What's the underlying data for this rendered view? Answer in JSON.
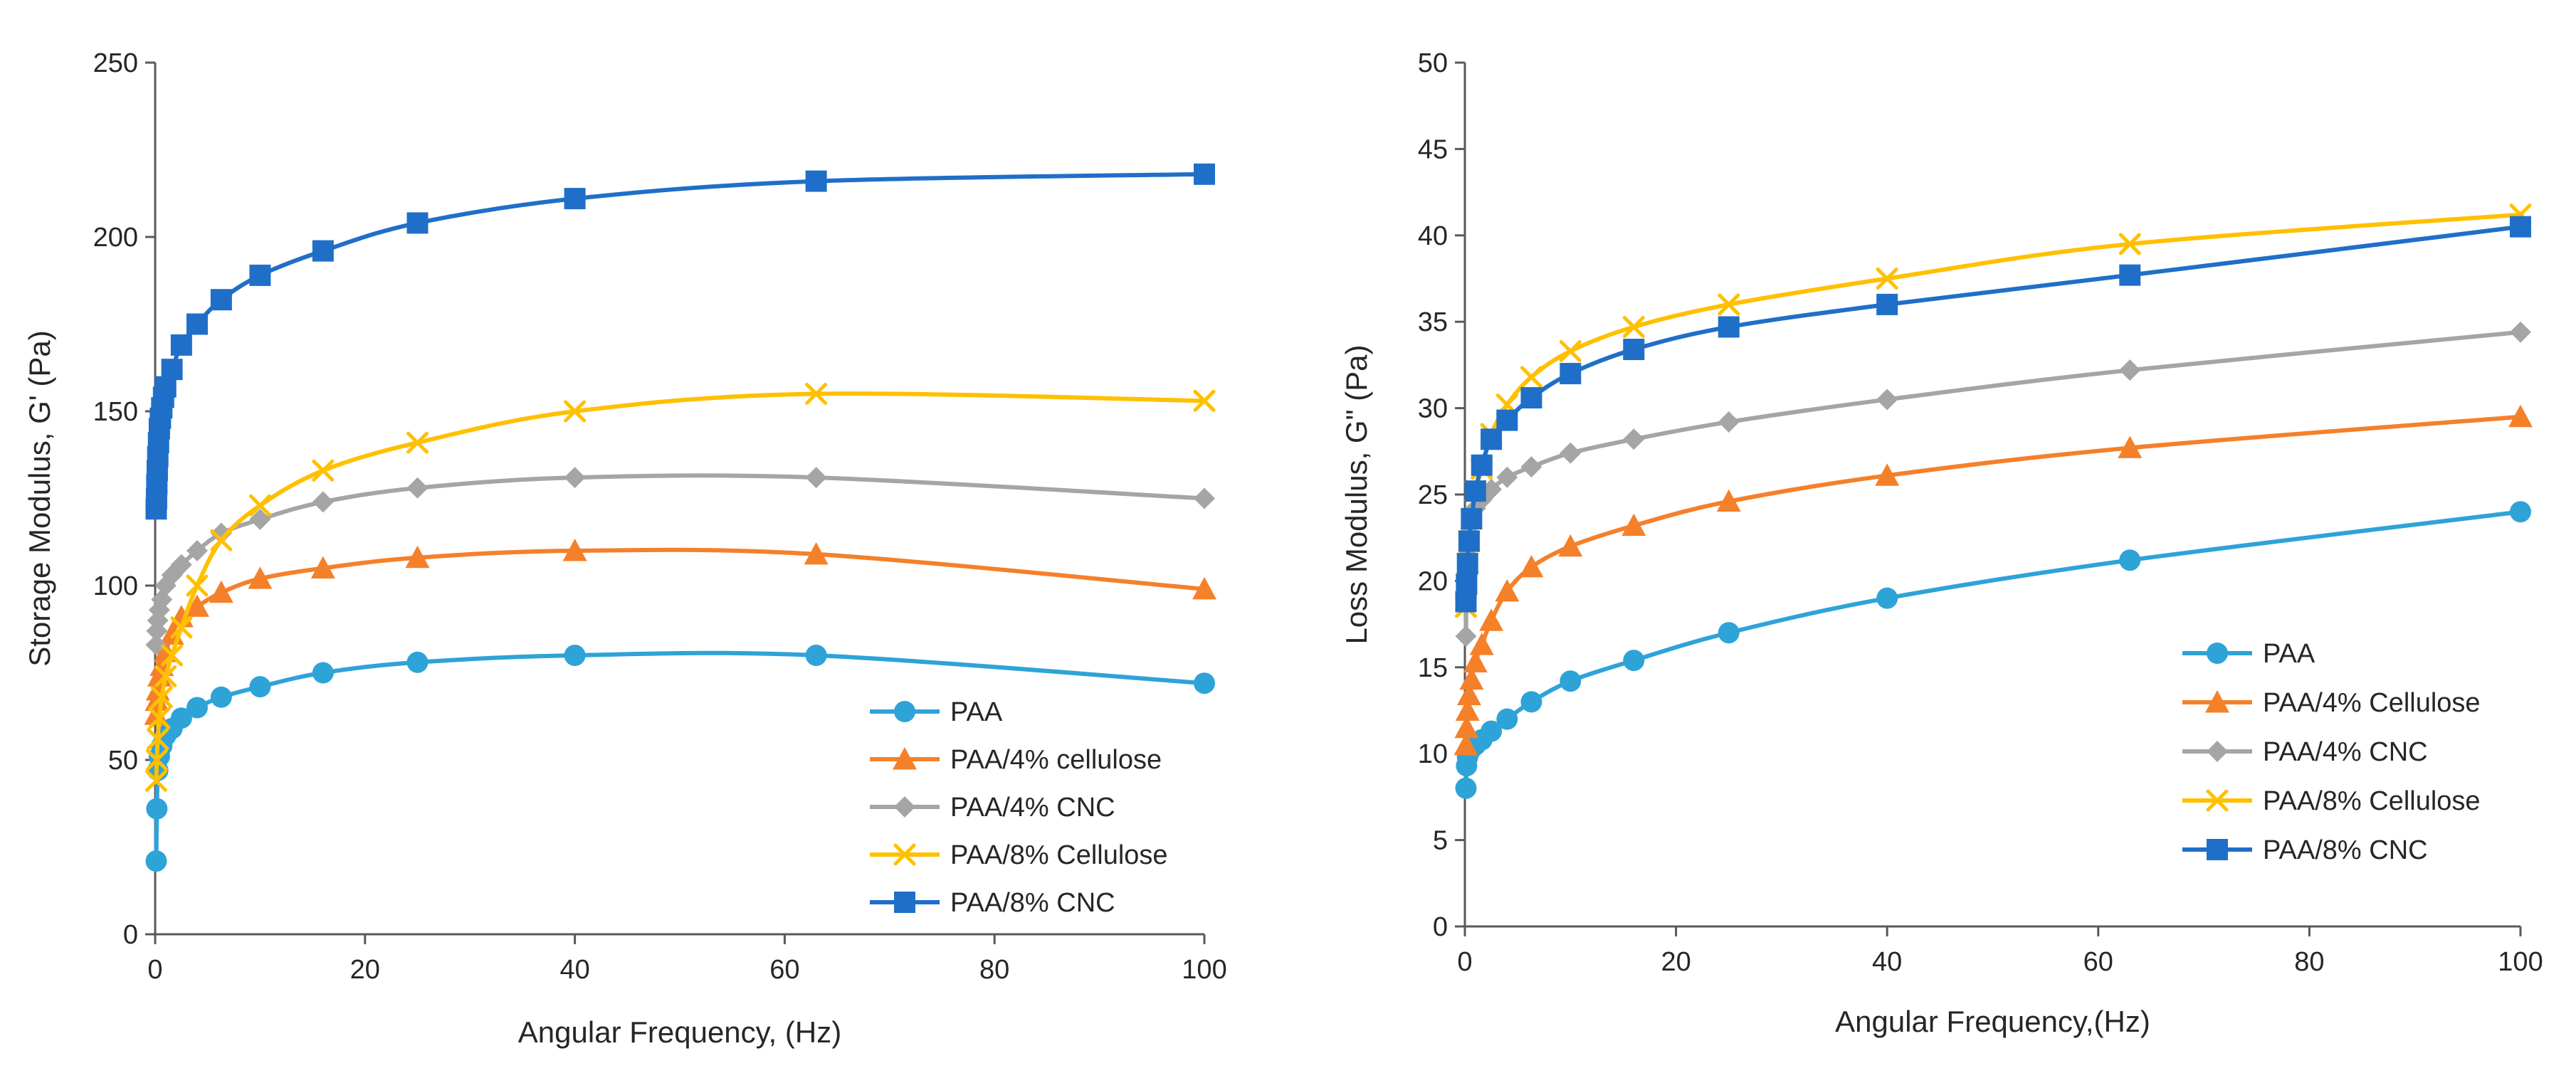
{
  "chart_data": [
    {
      "type": "line",
      "title": "",
      "xlabel": "Angular  Frequency, (Hz)",
      "ylabel": "Storage Modulus, G' (Pa)",
      "xlim": [
        0,
        100
      ],
      "ylim": [
        0,
        250
      ],
      "xticks": [
        "0",
        "20",
        "40",
        "60",
        "80",
        "100"
      ],
      "yticks": [
        "0",
        "50",
        "100",
        "150",
        "200",
        "250"
      ],
      "legend_position": "bottom-right",
      "series": [
        {
          "name": "PAA",
          "color": "#2ea3d8",
          "marker": "circle",
          "x": [
            0.1,
            0.16,
            0.25,
            0.4,
            0.63,
            1,
            1.6,
            2.5,
            4,
            6.3,
            10,
            16,
            25,
            40,
            63,
            100
          ],
          "y": [
            21,
            36,
            47,
            51,
            54,
            57,
            59,
            62,
            65,
            68,
            71,
            75,
            78,
            80,
            80,
            72
          ]
        },
        {
          "name": "PAA/4% cellulose",
          "color": "#f5802a",
          "marker": "triangle",
          "x": [
            0.1,
            0.16,
            0.25,
            0.4,
            0.63,
            1,
            1.6,
            2.5,
            4,
            6.3,
            10,
            16,
            25,
            40,
            63,
            100
          ],
          "y": [
            63,
            67,
            70,
            74,
            77,
            81,
            86,
            91,
            94,
            98,
            102,
            105,
            108,
            110,
            109,
            99
          ]
        },
        {
          "name": "PAA/4% CNC",
          "color": "#a5a5a5",
          "marker": "diamond",
          "x": [
            0.1,
            0.16,
            0.25,
            0.4,
            0.63,
            1,
            1.6,
            2.5,
            4,
            6.3,
            10,
            16,
            25,
            40,
            63,
            100
          ],
          "y": [
            83,
            87,
            90,
            93,
            96,
            100,
            103,
            106,
            110,
            115,
            119,
            124,
            128,
            131,
            131,
            125
          ]
        },
        {
          "name": "PAA/8% Cellulose",
          "color": "#ffc000",
          "marker": "x",
          "x": [
            0.1,
            0.16,
            0.25,
            0.4,
            0.63,
            1,
            1.6,
            2.5,
            4,
            6.3,
            10,
            16,
            25,
            40,
            63,
            100
          ],
          "y": [
            44,
            50,
            56,
            62,
            68,
            74,
            80,
            88,
            100,
            113,
            123,
            133,
            141,
            150,
            155,
            153
          ]
        },
        {
          "name": "PAA/8% CNC",
          "color": "#1f6fc8",
          "marker": "square",
          "x": [
            0.1,
            0.13,
            0.16,
            0.2,
            0.25,
            0.32,
            0.4,
            0.5,
            0.63,
            0.8,
            1,
            1.6,
            2.5,
            4,
            6.3,
            10,
            16,
            25,
            40,
            63,
            100
          ],
          "y": [
            122,
            125,
            129,
            133,
            137,
            141,
            145,
            148,
            151,
            154,
            157,
            162,
            169,
            175,
            182,
            189,
            196,
            204,
            211,
            216,
            218
          ]
        }
      ]
    },
    {
      "type": "line",
      "title": "",
      "xlabel": "Angular  Frequency,(Hz)",
      "ylabel": "Loss Modulus, G\" (Pa)",
      "xlim": [
        0,
        100
      ],
      "ylim": [
        0,
        50
      ],
      "xticks": [
        "0",
        "20",
        "40",
        "60",
        "80",
        "100"
      ],
      "yticks": [
        "0",
        "5",
        "10",
        "15",
        "20",
        "25",
        "30",
        "35",
        "40",
        "45",
        "50"
      ],
      "legend_position": "bottom-right",
      "series": [
        {
          "name": "PAA",
          "color": "#2ea3d8",
          "marker": "circle",
          "x": [
            0.1,
            0.16,
            0.25,
            0.4,
            0.63,
            1,
            1.6,
            2.5,
            4,
            6.3,
            10,
            16,
            25,
            40,
            63,
            100
          ],
          "y": [
            8,
            9.3,
            9.8,
            10.1,
            10.3,
            10.5,
            10.8,
            11.3,
            12,
            13,
            14.2,
            15.4,
            17,
            19,
            21.2,
            24
          ]
        },
        {
          "name": "PAA/4% Cellulose",
          "color": "#f5802a",
          "marker": "triangle",
          "x": [
            0.1,
            0.16,
            0.25,
            0.4,
            0.63,
            1,
            1.6,
            2.5,
            4,
            6.3,
            10,
            16,
            25,
            40,
            63,
            100
          ],
          "y": [
            10.5,
            11.5,
            12.5,
            13.4,
            14.3,
            15.3,
            16.3,
            17.7,
            19.4,
            20.8,
            22,
            23.2,
            24.6,
            26.1,
            27.7,
            29.5
          ]
        },
        {
          "name": "PAA/4% CNC",
          "color": "#a5a5a5",
          "marker": "diamond",
          "x": [
            0.1,
            0.16,
            0.25,
            0.4,
            0.63,
            1,
            1.6,
            2.5,
            4,
            6.3,
            10,
            16,
            25,
            40,
            63,
            100
          ],
          "y": [
            16.8,
            19.5,
            21.5,
            22.8,
            23.6,
            24.2,
            24.7,
            25.3,
            26,
            26.6,
            27.4,
            28.2,
            29.2,
            30.5,
            32.2,
            34.4
          ]
        },
        {
          "name": "PAA/8% Cellulose",
          "color": "#ffc000",
          "marker": "x",
          "x": [
            0.1,
            0.16,
            0.25,
            0.4,
            0.63,
            1,
            1.6,
            2.5,
            4,
            6.3,
            10,
            16,
            25,
            40,
            63,
            100
          ],
          "y": [
            18.5,
            19.8,
            21,
            22.3,
            23.6,
            25.2,
            26.5,
            28.5,
            30.2,
            31.8,
            33.3,
            34.7,
            36,
            37.5,
            39.5,
            41.2
          ]
        },
        {
          "name": "PAA/8% CNC",
          "color": "#1f6fc8",
          "marker": "square",
          "x": [
            0.1,
            0.16,
            0.25,
            0.4,
            0.63,
            1,
            1.6,
            2.5,
            4,
            6.3,
            10,
            16,
            25,
            40,
            63,
            100
          ],
          "y": [
            18.8,
            19.8,
            21,
            22.3,
            23.6,
            25.2,
            26.7,
            28.2,
            29.3,
            30.6,
            32,
            33.4,
            34.7,
            36,
            37.7,
            40.5
          ]
        }
      ]
    }
  ]
}
